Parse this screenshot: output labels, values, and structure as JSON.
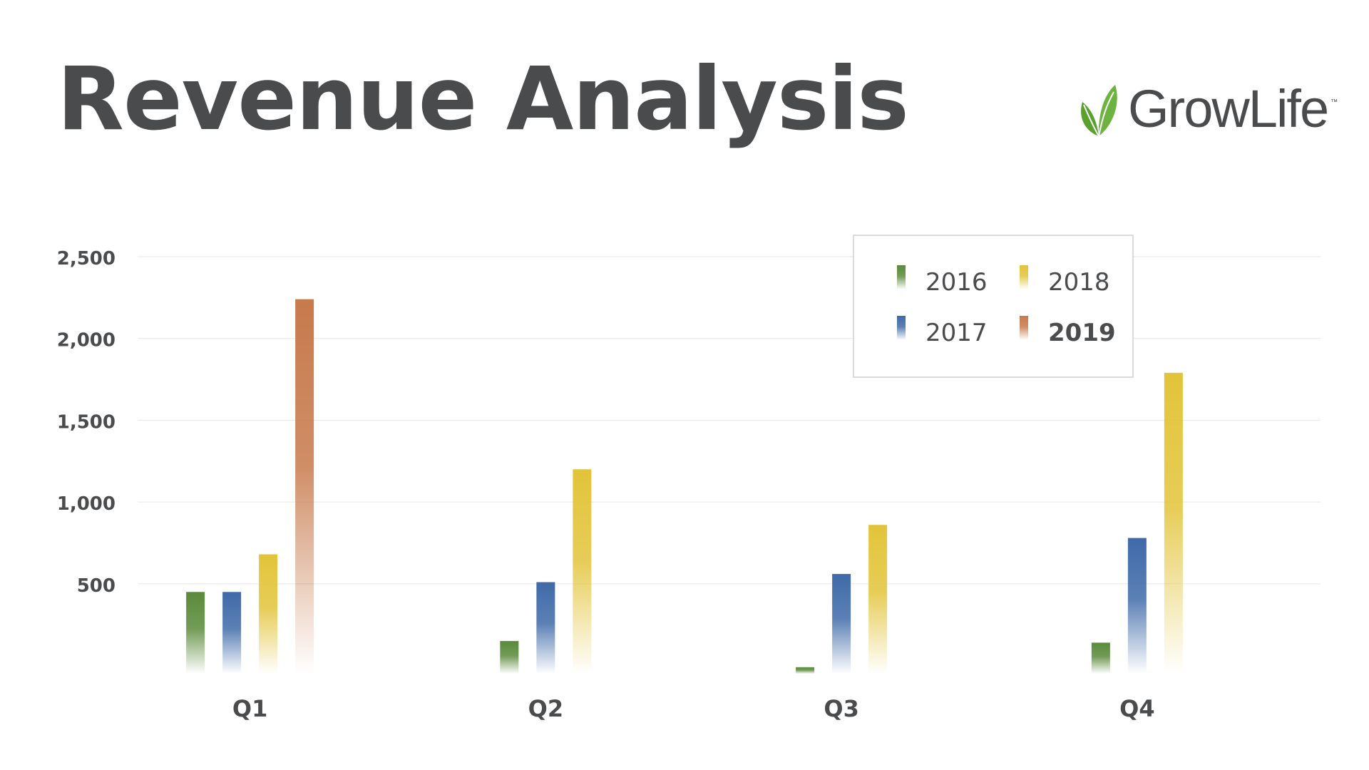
{
  "title": "Revenue Analysis",
  "brand": {
    "name": "GrowLife",
    "tm": "™",
    "logo_icon": "leaf-icon",
    "logo_color": "#5aa02c"
  },
  "chart_data": {
    "type": "bar",
    "categories": [
      "Q1",
      "Q2",
      "Q3",
      "Q4"
    ],
    "series": [
      {
        "name": "2016",
        "color": "#5a8a3a",
        "values": [
          450,
          150,
          -10,
          140
        ]
      },
      {
        "name": "2017",
        "color": "#3f6aa8",
        "values": [
          450,
          510,
          560,
          780
        ]
      },
      {
        "name": "2018",
        "color": "#e2c43a",
        "values": [
          680,
          1200,
          860,
          1790
        ]
      },
      {
        "name": "2019",
        "color": "#c77a4c",
        "values": [
          2240,
          null,
          null,
          null
        ]
      }
    ],
    "yticks": [
      500,
      1000,
      1500,
      2000,
      2500
    ],
    "ytick_labels": [
      "500",
      "1,000",
      "1,500",
      "2,000",
      "2,500"
    ],
    "ylim": [
      -50,
      2500
    ],
    "grid": true,
    "legend_position": "top-right",
    "legend_emphasis": "2019"
  }
}
